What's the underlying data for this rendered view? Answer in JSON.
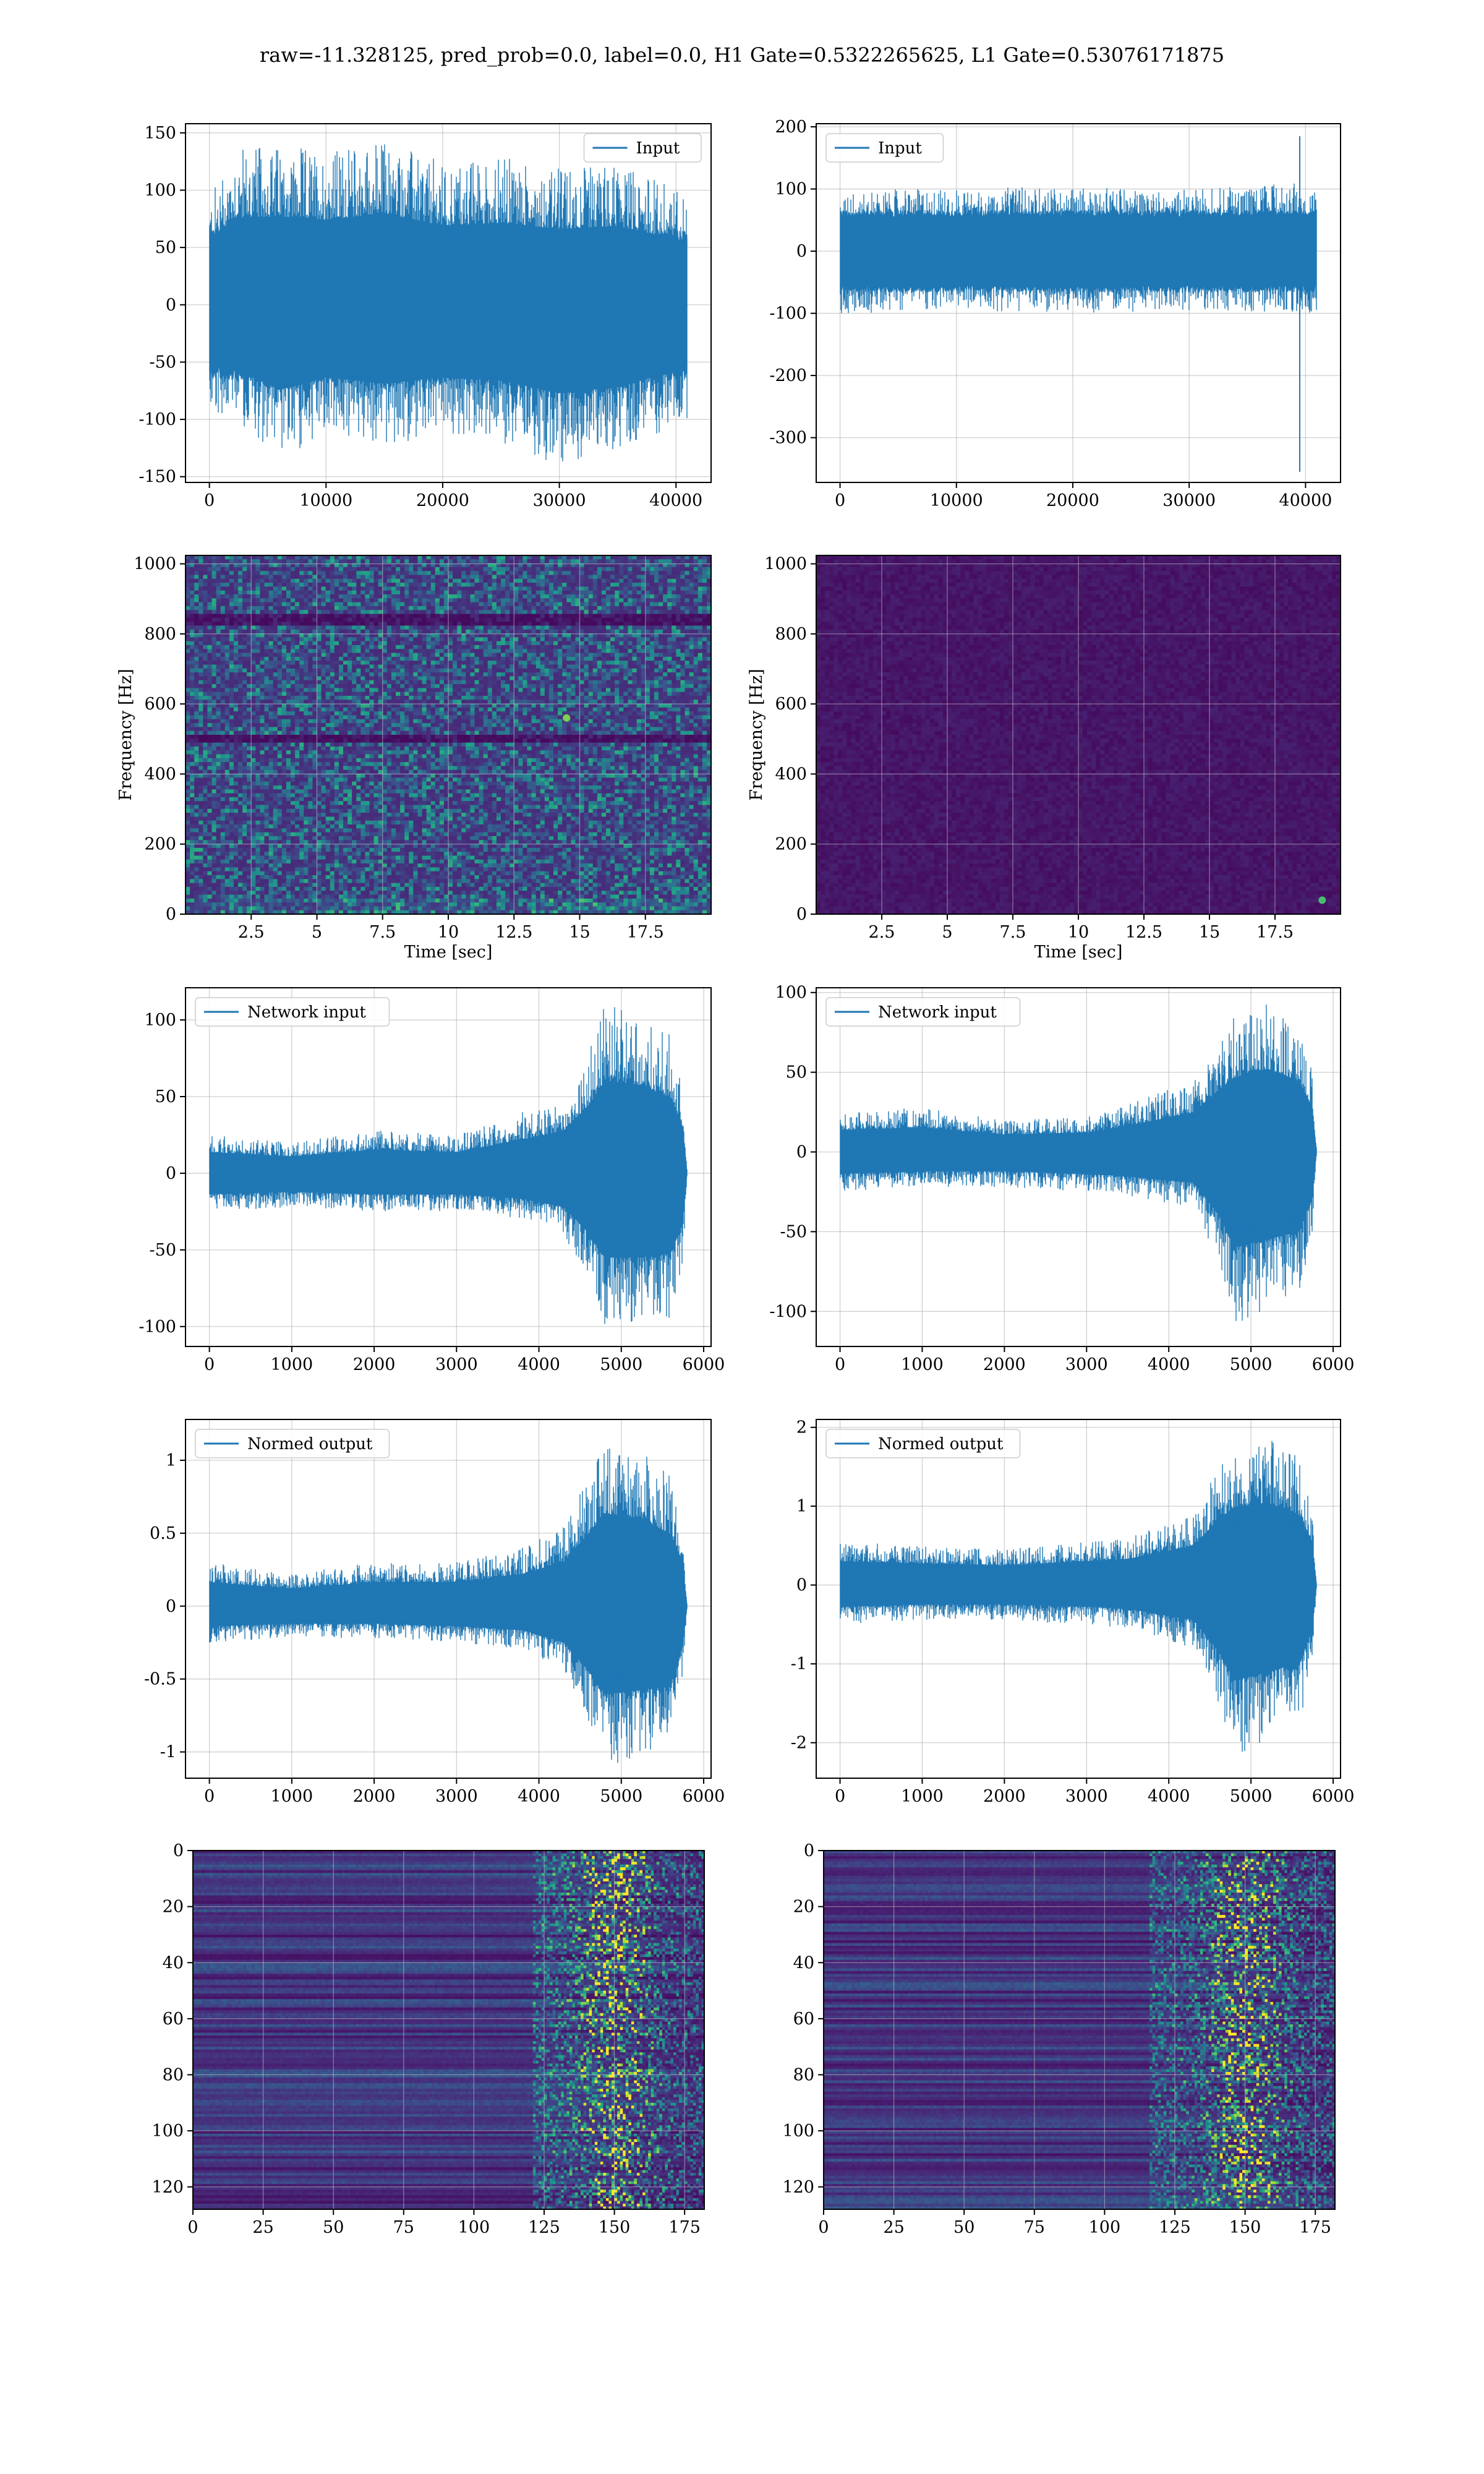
{
  "figure": {
    "suptitle": "raw=-11.328125, pred_prob=0.0, label=0.0, H1 Gate=0.5322265625, L1 Gate=0.53076171875"
  },
  "colors": {
    "line": "#1f77b4",
    "grid": "#b0b0b0",
    "viridis": [
      "#440154",
      "#482878",
      "#3e4989",
      "#31688e",
      "#26828e",
      "#1f9e89",
      "#35b779",
      "#6ece58",
      "#b5de2b",
      "#fde725"
    ]
  },
  "chart_data": [
    {
      "id": "h1-input",
      "type": "line",
      "row": 0,
      "col": 0,
      "series": [
        {
          "name": "Input",
          "n_points": 40960
        }
      ],
      "legend": "upper right",
      "xlim": [
        -2048,
        43008
      ],
      "ylim": [
        -155,
        158
      ],
      "xticks": [
        0,
        10000,
        20000,
        30000,
        40000
      ],
      "yticks": [
        -150,
        -100,
        -50,
        0,
        50,
        100,
        150
      ],
      "data_x_range": [
        0,
        40960
      ],
      "envelope": [
        {
          "x": 0,
          "min": -100,
          "max": 95
        },
        {
          "x": 2000,
          "min": -98,
          "max": 138
        },
        {
          "x": 6000,
          "min": -135,
          "max": 140
        },
        {
          "x": 10000,
          "min": -115,
          "max": 135
        },
        {
          "x": 15000,
          "min": -125,
          "max": 145
        },
        {
          "x": 20000,
          "min": -115,
          "max": 125
        },
        {
          "x": 25000,
          "min": -120,
          "max": 130
        },
        {
          "x": 30000,
          "min": -140,
          "max": 120
        },
        {
          "x": 35000,
          "min": -130,
          "max": 125
        },
        {
          "x": 40960,
          "min": -100,
          "max": 100
        }
      ],
      "core_amplitude": 60
    },
    {
      "id": "l1-input",
      "type": "line",
      "row": 0,
      "col": 1,
      "series": [
        {
          "name": "Input",
          "n_points": 40960
        }
      ],
      "legend": "upper left",
      "xlim": [
        -2048,
        43008
      ],
      "ylim": [
        -372,
        205
      ],
      "xticks": [
        0,
        10000,
        20000,
        30000,
        40000
      ],
      "yticks": [
        -300,
        -200,
        -100,
        0,
        100,
        200
      ],
      "data_x_range": [
        0,
        40960
      ],
      "envelope": [
        {
          "x": 0,
          "min": -105,
          "max": 95
        },
        {
          "x": 5000,
          "min": -95,
          "max": 100
        },
        {
          "x": 10000,
          "min": -95,
          "max": 100
        },
        {
          "x": 20000,
          "min": -100,
          "max": 105
        },
        {
          "x": 30000,
          "min": -95,
          "max": 100
        },
        {
          "x": 39000,
          "min": -100,
          "max": 110
        },
        {
          "x": 40960,
          "min": -100,
          "max": 100
        }
      ],
      "spikes": [
        {
          "x": 39500,
          "min": -355,
          "max": 185
        }
      ],
      "core_amplitude": 60
    },
    {
      "id": "h1-spectrogram",
      "type": "heatmap",
      "row": 1,
      "col": 0,
      "xlabel": "Time [sec]",
      "ylabel": "Frequency [Hz]",
      "xlim": [
        0,
        20
      ],
      "ylim": [
        0,
        1024
      ],
      "xticks": [
        2.5,
        5.0,
        7.5,
        10.0,
        12.5,
        15.0,
        17.5
      ],
      "yticks": [
        0,
        200,
        400,
        600,
        800,
        1000
      ],
      "colormap": "viridis",
      "texture": "noisy",
      "notch_hz": [
        500,
        840
      ],
      "hotspots": [
        {
          "t": 14.5,
          "f": 560,
          "level": 0.8
        }
      ]
    },
    {
      "id": "l1-spectrogram",
      "type": "heatmap",
      "row": 1,
      "col": 1,
      "xlabel": "Time [sec]",
      "ylabel": "Frequency [Hz]",
      "xlim": [
        0,
        20
      ],
      "ylim": [
        0,
        1024
      ],
      "xticks": [
        2.5,
        5.0,
        7.5,
        10.0,
        12.5,
        15.0,
        17.5
      ],
      "yticks": [
        0,
        200,
        400,
        600,
        800,
        1000
      ],
      "colormap": "viridis",
      "texture": "flat",
      "hotspots": [
        {
          "t": 19.3,
          "f": 40,
          "level": 0.7
        }
      ]
    },
    {
      "id": "h1-network-input",
      "type": "line",
      "row": 2,
      "col": 0,
      "series": [
        {
          "name": "Network input",
          "n_points": 5800
        }
      ],
      "legend": "upper left",
      "xlim": [
        -290,
        6090
      ],
      "ylim": [
        -113,
        121
      ],
      "xticks": [
        0,
        1000,
        2000,
        3000,
        4000,
        5000,
        6000
      ],
      "yticks": [
        -100,
        -50,
        0,
        50,
        100
      ],
      "data_x_range": [
        0,
        5800
      ],
      "envelope": [
        {
          "x": 0,
          "min": -25,
          "max": 25
        },
        {
          "x": 1000,
          "min": -22,
          "max": 20
        },
        {
          "x": 2000,
          "min": -25,
          "max": 28
        },
        {
          "x": 3000,
          "min": -25,
          "max": 25
        },
        {
          "x": 3800,
          "min": -30,
          "max": 40
        },
        {
          "x": 4300,
          "min": -40,
          "max": 50
        },
        {
          "x": 4600,
          "min": -70,
          "max": 80
        },
        {
          "x": 4800,
          "min": -100,
          "max": 110
        },
        {
          "x": 5200,
          "min": -100,
          "max": 105
        },
        {
          "x": 5600,
          "min": -95,
          "max": 90
        },
        {
          "x": 5750,
          "min": -60,
          "max": 55
        },
        {
          "x": 5800,
          "min": -3,
          "max": 3
        }
      ],
      "core_ratio": 0.45
    },
    {
      "id": "l1-network-input",
      "type": "line",
      "row": 2,
      "col": 1,
      "series": [
        {
          "name": "Network input",
          "n_points": 5800
        }
      ],
      "legend": "upper left",
      "xlim": [
        -290,
        6090
      ],
      "ylim": [
        -122,
        103
      ],
      "xticks": [
        0,
        1000,
        2000,
        3000,
        4000,
        5000,
        6000
      ],
      "yticks": [
        -100,
        -50,
        0,
        50,
        100
      ],
      "data_x_range": [
        0,
        5800
      ],
      "envelope": [
        {
          "x": 0,
          "min": -25,
          "max": 25
        },
        {
          "x": 1000,
          "min": -22,
          "max": 28
        },
        {
          "x": 2000,
          "min": -22,
          "max": 20
        },
        {
          "x": 3000,
          "min": -25,
          "max": 22
        },
        {
          "x": 3500,
          "min": -28,
          "max": 30
        },
        {
          "x": 4300,
          "min": -35,
          "max": 45
        },
        {
          "x": 4600,
          "min": -70,
          "max": 70
        },
        {
          "x": 4800,
          "min": -108,
          "max": 85
        },
        {
          "x": 5200,
          "min": -100,
          "max": 95
        },
        {
          "x": 5600,
          "min": -90,
          "max": 80
        },
        {
          "x": 5750,
          "min": -50,
          "max": 50
        },
        {
          "x": 5800,
          "min": -3,
          "max": 3
        }
      ],
      "core_ratio": 0.45
    },
    {
      "id": "h1-normed-output",
      "type": "line",
      "row": 3,
      "col": 0,
      "series": [
        {
          "name": "Normed output",
          "n_points": 5800
        }
      ],
      "legend": "upper left",
      "xlim": [
        -290,
        6090
      ],
      "ylim": [
        -1.18,
        1.28
      ],
      "xticks": [
        0,
        1000,
        2000,
        3000,
        4000,
        5000,
        6000
      ],
      "yticks": [
        -1.0,
        -0.5,
        0.0,
        0.5,
        1.0
      ],
      "data_x_range": [
        0,
        5800
      ],
      "envelope": [
        {
          "x": 0,
          "min": -0.25,
          "max": 0.3
        },
        {
          "x": 1000,
          "min": -0.22,
          "max": 0.22
        },
        {
          "x": 2000,
          "min": -0.22,
          "max": 0.3
        },
        {
          "x": 3000,
          "min": -0.25,
          "max": 0.3
        },
        {
          "x": 3800,
          "min": -0.3,
          "max": 0.4
        },
        {
          "x": 4300,
          "min": -0.45,
          "max": 0.55
        },
        {
          "x": 4600,
          "min": -0.8,
          "max": 0.9
        },
        {
          "x": 4800,
          "min": -1.1,
          "max": 1.15
        },
        {
          "x": 5200,
          "min": -1.05,
          "max": 1.1
        },
        {
          "x": 5600,
          "min": -1.0,
          "max": 0.9
        },
        {
          "x": 5750,
          "min": -0.5,
          "max": 0.55
        },
        {
          "x": 5800,
          "min": -0.03,
          "max": 0.03
        }
      ],
      "core_ratio": 0.45
    },
    {
      "id": "l1-normed-output",
      "type": "line",
      "row": 3,
      "col": 1,
      "series": [
        {
          "name": "Normed output",
          "n_points": 5800
        }
      ],
      "legend": "upper left",
      "xlim": [
        -290,
        6090
      ],
      "ylim": [
        -2.45,
        2.1
      ],
      "xticks": [
        0,
        1000,
        2000,
        3000,
        4000,
        5000,
        6000
      ],
      "yticks": [
        -2,
        -1,
        0,
        1,
        2
      ],
      "data_x_range": [
        0,
        5800
      ],
      "envelope": [
        {
          "x": 0,
          "min": -0.5,
          "max": 0.55
        },
        {
          "x": 1000,
          "min": -0.45,
          "max": 0.5
        },
        {
          "x": 2000,
          "min": -0.45,
          "max": 0.45
        },
        {
          "x": 3000,
          "min": -0.5,
          "max": 0.55
        },
        {
          "x": 3500,
          "min": -0.55,
          "max": 0.6
        },
        {
          "x": 4300,
          "min": -0.8,
          "max": 0.9
        },
        {
          "x": 4600,
          "min": -1.5,
          "max": 1.5
        },
        {
          "x": 4800,
          "min": -2.2,
          "max": 1.8
        },
        {
          "x": 5200,
          "min": -2.0,
          "max": 1.9
        },
        {
          "x": 5600,
          "min": -1.8,
          "max": 1.6
        },
        {
          "x": 5750,
          "min": -1.0,
          "max": 1.0
        },
        {
          "x": 5800,
          "min": -0.05,
          "max": 0.05
        }
      ],
      "core_ratio": 0.45
    },
    {
      "id": "h1-feature-map",
      "type": "heatmap",
      "row": 4,
      "col": 0,
      "xlim": [
        0,
        182
      ],
      "ylim": [
        128,
        0
      ],
      "xticks": [
        0,
        25,
        50,
        75,
        100,
        125,
        150,
        175
      ],
      "yticks": [
        0,
        20,
        40,
        60,
        80,
        100,
        120
      ],
      "colormap": "viridis",
      "texture": "rows",
      "active_from_col": 120,
      "peak_col": 150
    },
    {
      "id": "l1-feature-map",
      "type": "heatmap",
      "row": 4,
      "col": 1,
      "xlim": [
        0,
        182
      ],
      "ylim": [
        128,
        0
      ],
      "xticks": [
        0,
        25,
        50,
        75,
        100,
        125,
        150,
        175
      ],
      "yticks": [
        0,
        20,
        40,
        60,
        80,
        100,
        120
      ],
      "colormap": "viridis",
      "texture": "rows",
      "active_from_col": 115,
      "peak_col": 150
    }
  ]
}
